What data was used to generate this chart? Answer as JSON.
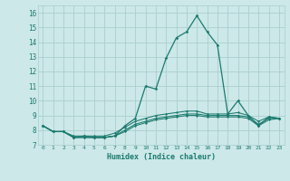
{
  "xlabel": "Humidex (Indice chaleur)",
  "x_values": [
    0,
    1,
    2,
    3,
    4,
    5,
    6,
    7,
    8,
    9,
    10,
    11,
    12,
    13,
    14,
    15,
    16,
    17,
    18,
    19,
    20,
    21,
    22,
    23
  ],
  "line1": [
    8.3,
    7.9,
    7.9,
    7.5,
    7.6,
    7.5,
    7.5,
    7.6,
    8.3,
    8.8,
    11.0,
    10.8,
    12.9,
    14.3,
    14.7,
    15.8,
    14.7,
    13.8,
    9.1,
    10.0,
    9.0,
    8.3,
    8.9,
    8.8
  ],
  "line2": [
    8.3,
    7.9,
    7.9,
    7.6,
    7.6,
    7.6,
    7.6,
    7.8,
    8.2,
    8.6,
    8.8,
    9.0,
    9.1,
    9.2,
    9.3,
    9.3,
    9.1,
    9.1,
    9.1,
    9.2,
    9.0,
    8.6,
    8.9,
    8.8
  ],
  "line3": [
    8.3,
    7.9,
    7.9,
    7.5,
    7.5,
    7.5,
    7.5,
    7.6,
    8.0,
    8.4,
    8.6,
    8.8,
    8.9,
    9.0,
    9.1,
    9.1,
    9.0,
    9.0,
    9.0,
    9.0,
    8.9,
    8.4,
    8.8,
    8.8
  ],
  "line4": [
    8.3,
    7.9,
    7.9,
    7.5,
    7.5,
    7.5,
    7.5,
    7.6,
    7.9,
    8.3,
    8.5,
    8.7,
    8.8,
    8.9,
    9.0,
    9.0,
    8.9,
    8.9,
    8.9,
    8.9,
    8.8,
    8.3,
    8.7,
    8.8
  ],
  "line_color": "#1a7a6e",
  "bg_color": "#cce8e8",
  "grid_color": "#aacece",
  "ylim": [
    7.0,
    16.5
  ],
  "yticks": [
    7,
    8,
    9,
    10,
    11,
    12,
    13,
    14,
    15,
    16
  ],
  "xlim": [
    -0.5,
    23.5
  ],
  "xticks": [
    0,
    1,
    2,
    3,
    4,
    5,
    6,
    7,
    8,
    9,
    10,
    11,
    12,
    13,
    14,
    15,
    16,
    17,
    18,
    19,
    20,
    21,
    22,
    23
  ]
}
